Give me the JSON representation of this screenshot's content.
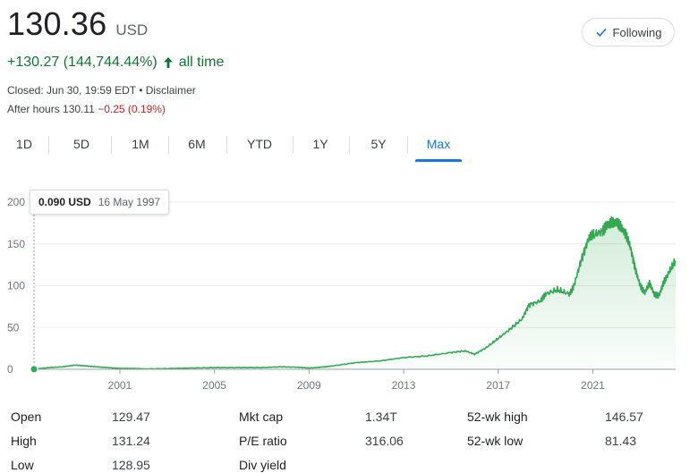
{
  "quote": {
    "price": "130.36",
    "currency": "USD",
    "change": "+130.27 (144,744.44%)",
    "period": "all time",
    "closed": "Closed: Jun 30, 19:59 EDT • Disclaimer",
    "after_hours_label": "After hours 130.11",
    "after_hours_change": "−0.25 (0.19%)"
  },
  "follow_button": {
    "label": "Following"
  },
  "tabs": [
    {
      "label": "1D"
    },
    {
      "label": "5D"
    },
    {
      "label": "1M"
    },
    {
      "label": "6M"
    },
    {
      "label": "YTD"
    },
    {
      "label": "1Y"
    },
    {
      "label": "5Y"
    },
    {
      "label": "Max",
      "active": true
    }
  ],
  "tooltip": {
    "value": "0.090 USD",
    "date": "16 May 1997"
  },
  "colors": {
    "line": "#34a853",
    "accent": "#1a73e8",
    "positive": "#137333",
    "negative": "#c5221f"
  },
  "chart_data": {
    "type": "area",
    "title": "",
    "xlabel": "",
    "ylabel": "",
    "xlim": [
      1997.37,
      2024.5
    ],
    "ylim": [
      0,
      200
    ],
    "y_ticks": [
      "0",
      "50",
      "100",
      "150",
      "200"
    ],
    "x_ticks": [
      "2001",
      "2005",
      "2009",
      "2013",
      "2017",
      "2021"
    ],
    "grid": true,
    "series": [
      {
        "x": [
          1997.37,
          1998.0,
          1998.6,
          1999.1,
          1999.6,
          2000.0,
          2000.5,
          2001.0,
          2001.5,
          2002.0,
          2003.0,
          2004.0,
          2005.0,
          2006.0,
          2007.0,
          2007.8,
          2008.5,
          2009.0,
          2009.5,
          2010.0,
          2011.0,
          2012.0,
          2013.0,
          2014.0,
          2015.0,
          2015.6,
          2016.0,
          2016.5,
          2017.0,
          2017.5,
          2018.0,
          2018.3,
          2018.8,
          2019.0,
          2019.5,
          2020.0,
          2020.2,
          2020.5,
          2020.8,
          2021.0,
          2021.4,
          2021.6,
          2021.8,
          2022.0,
          2022.2,
          2022.4,
          2022.6,
          2022.8,
          2023.0,
          2023.2,
          2023.4,
          2023.6,
          2023.8,
          2024.0,
          2024.2,
          2024.5
        ],
        "values": [
          0.09,
          2,
          3,
          5,
          4,
          3,
          2,
          1,
          1,
          0.5,
          0.8,
          1.5,
          2,
          2,
          2,
          3,
          2.5,
          1.5,
          2.5,
          4,
          8,
          10,
          14,
          16,
          20,
          22,
          18,
          26,
          37,
          48,
          60,
          77,
          82,
          90,
          95,
          90,
          100,
          130,
          155,
          160,
          165,
          172,
          178,
          175,
          170,
          160,
          145,
          120,
          100,
          92,
          102,
          90,
          88,
          105,
          115,
          130
        ]
      }
    ]
  },
  "stats": {
    "rows": [
      [
        {
          "label": "Open",
          "value": "129.47"
        },
        {
          "label": "Mkt cap",
          "value": "1.34T"
        },
        {
          "label": "52-wk high",
          "value": "146.57"
        }
      ],
      [
        {
          "label": "High",
          "value": "131.24"
        },
        {
          "label": "P/E ratio",
          "value": "316.06"
        },
        {
          "label": "52-wk low",
          "value": "81.43"
        }
      ],
      [
        {
          "label": "Low",
          "value": "128.95"
        },
        {
          "label": "Div yield",
          "value": ""
        }
      ]
    ]
  }
}
